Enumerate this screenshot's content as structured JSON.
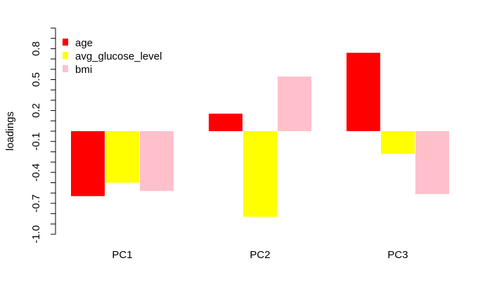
{
  "chart_data": {
    "type": "bar",
    "title": "",
    "xlabel": "",
    "ylabel": "loadings",
    "categories": [
      "PC1",
      "PC2",
      "PC3"
    ],
    "series": [
      {
        "name": "age",
        "values": [
          -0.63,
          0.17,
          0.76
        ],
        "color": "#ff0000"
      },
      {
        "name": "avg_glucose_level",
        "values": [
          -0.5,
          -0.83,
          -0.22
        ],
        "color": "#ffff00"
      },
      {
        "name": "bmi",
        "values": [
          -0.58,
          0.53,
          -0.61
        ],
        "color": "#ffc0cb"
      }
    ],
    "ylim": [
      -1.0,
      1.0
    ],
    "yticks": [
      {
        "value": -1.0,
        "label": "-1.0"
      },
      {
        "value": -0.7,
        "label": "-0.7"
      },
      {
        "value": -0.4,
        "label": "-0.4"
      },
      {
        "value": -0.1,
        "label": "-0.1"
      },
      {
        "value": 0.2,
        "label": "0.2"
      },
      {
        "value": 0.5,
        "label": "0.5"
      },
      {
        "value": 0.8,
        "label": "0.8"
      }
    ],
    "minor_tick_step": 0.1,
    "grid": false,
    "legend_position": "top-left"
  }
}
